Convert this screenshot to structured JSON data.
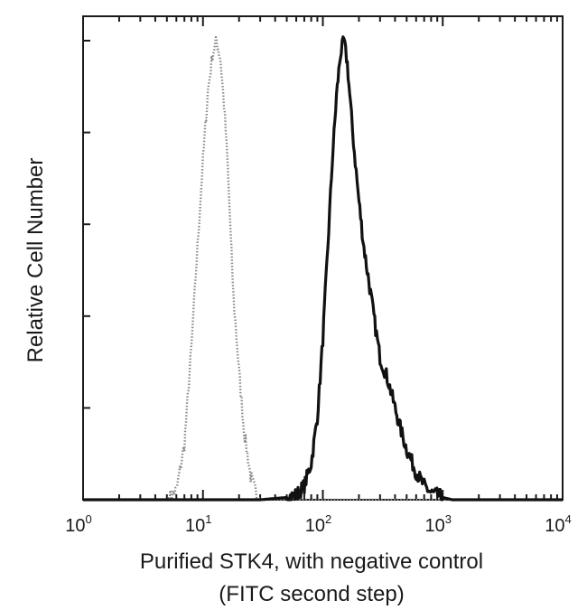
{
  "chart_data": {
    "type": "line",
    "title": "",
    "xlabel": "Purified STK4, with negative control",
    "xlabel_line2": "(FITC second step)",
    "ylabel": "Relative Cell Number",
    "x_scale": "log",
    "xlim": [
      1,
      10000
    ],
    "ylim": [
      0,
      100
    ],
    "x_ticks": [
      {
        "base": "10",
        "exp": "0",
        "value": 1
      },
      {
        "base": "10",
        "exp": "1",
        "value": 10
      },
      {
        "base": "10",
        "exp": "2",
        "value": 100
      },
      {
        "base": "10",
        "exp": "3",
        "value": 1000
      },
      {
        "base": "10",
        "exp": "4",
        "value": 10000
      }
    ],
    "y_tick_values": [
      0,
      20,
      40,
      60,
      80,
      100
    ],
    "grid": false,
    "legend": "none",
    "series": [
      {
        "style": "dotted",
        "color": "#8a8a8a",
        "x": [
          1,
          5,
          6,
          7,
          8,
          9,
          10,
          11,
          12,
          13,
          14,
          15,
          16,
          17,
          18,
          20,
          22,
          25,
          28,
          30,
          100,
          10000
        ],
        "y": [
          0,
          0,
          2,
          12,
          33,
          55,
          74,
          89,
          97,
          100,
          96,
          86,
          74,
          58,
          44,
          28,
          15,
          5,
          1,
          0,
          0,
          0
        ]
      },
      {
        "style": "solid",
        "color": "#111111",
        "x": [
          1,
          30,
          50,
          60,
          70,
          80,
          90,
          100,
          110,
          120,
          130,
          140,
          150,
          160,
          170,
          180,
          200,
          220,
          250,
          280,
          300,
          350,
          400,
          450,
          500,
          600,
          700,
          800,
          1000,
          1200,
          10000
        ],
        "y": [
          0,
          0,
          0.5,
          1,
          3,
          8,
          18,
          35,
          55,
          74,
          88,
          97,
          100,
          95,
          86,
          78,
          65,
          55,
          45,
          36,
          31,
          26,
          20,
          15,
          11,
          6,
          3,
          1.5,
          0.5,
          0,
          0
        ]
      }
    ]
  }
}
